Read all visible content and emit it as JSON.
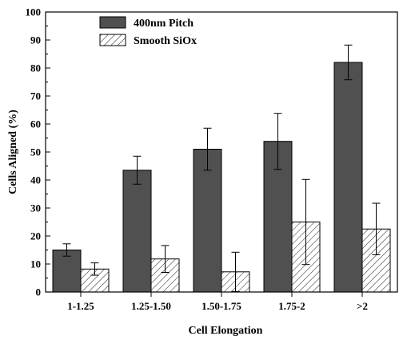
{
  "chart_data": {
    "type": "bar",
    "title": "",
    "xlabel": "Cell Elongation",
    "ylabel": "Cells Aligned (%)",
    "ylim": [
      0,
      100
    ],
    "yticks": [
      "0",
      "10",
      "20",
      "30",
      "40",
      "50",
      "60",
      "70",
      "80",
      "90",
      "100"
    ],
    "categories": [
      "1-1.25",
      "1.25-1.50",
      "1.50-1.75",
      "1.75-2",
      ">2"
    ],
    "series": [
      {
        "name": "400nm Pitch",
        "fill": "solid",
        "color": "#505050",
        "values": [
          15,
          43.5,
          51,
          53.8,
          82
        ],
        "errors": [
          2.2,
          5,
          7.5,
          10,
          6.2
        ]
      },
      {
        "name": "Smooth SiOx",
        "fill": "hatched",
        "color": "#ffffff",
        "values": [
          8.2,
          11.8,
          7.2,
          25,
          22.5
        ],
        "errors": [
          2.2,
          4.8,
          7,
          15.2,
          9.2
        ]
      }
    ],
    "grid": false,
    "legend_position": "top-left"
  }
}
